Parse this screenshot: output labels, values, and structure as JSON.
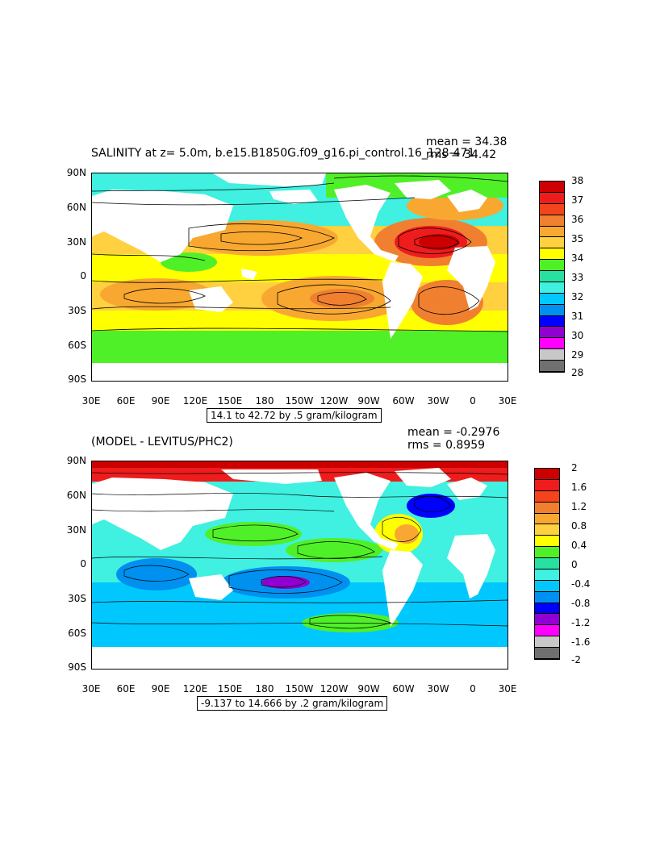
{
  "panels": [
    {
      "title": "SALINITY at z=    5.0m, b.e15.B1850G.f09_g16.pi_control.16_128-471",
      "mean": "mean = 34.38",
      "rms": "rms = 34.42",
      "contour_info": "14.1 to 42.72 by .5 gram/kilogram",
      "colorbar_labels": [
        "38",
        "37",
        "36",
        "35",
        "34",
        "33",
        "32",
        "31",
        "30",
        "29",
        "28"
      ],
      "colorbar_colors": [
        "#cc0000",
        "#ee1c1c",
        "#f4441c",
        "#f08030",
        "#f8a830",
        "#ffd040",
        "#ffff00",
        "#50f028",
        "#28e0a0",
        "#40f0e0",
        "#00c8ff",
        "#0090f0",
        "#0000ff",
        "#9000d0",
        "#ff00ff",
        "#c8c8c8",
        "#707070"
      ]
    },
    {
      "title": "(MODEL - LEVITUS/PHC2)",
      "mean": "mean = -0.2976",
      "rms": "rms = 0.8959",
      "contour_info": "-9.137 to 14.666 by .2 gram/kilogram",
      "colorbar_labels": [
        "2",
        "1.6",
        "1.2",
        "0.8",
        "0.4",
        "0",
        "-0.4",
        "-0.8",
        "-1.2",
        "-1.6",
        "-2"
      ],
      "colorbar_colors": [
        "#cc0000",
        "#ee1c1c",
        "#f4441c",
        "#f08030",
        "#f8a830",
        "#ffd040",
        "#ffff00",
        "#50f028",
        "#28e0a0",
        "#40f0e0",
        "#00c8ff",
        "#0090f0",
        "#0000ff",
        "#9000d0",
        "#ff00ff",
        "#c8c8c8",
        "#707070"
      ]
    }
  ],
  "lat_labels": [
    "90N",
    "60N",
    "30N",
    "0",
    "30S",
    "60S",
    "90S"
  ],
  "lon_labels": [
    "30E",
    "60E",
    "90E",
    "120E",
    "150E",
    "180",
    "150W",
    "120W",
    "90W",
    "60W",
    "30W",
    "0",
    "30E"
  ],
  "colors": {
    "ocean_salinity_base": "#50f028",
    "ocean_diff_base": "#40f0e0",
    "land": "#ffffff"
  }
}
